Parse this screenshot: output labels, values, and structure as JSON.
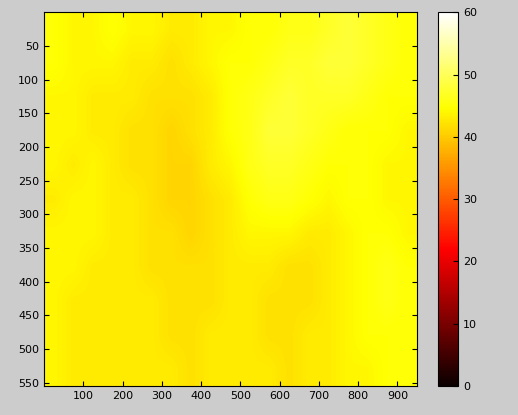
{
  "chart_data": {
    "type": "heatmap",
    "color": "hot",
    "xlim": [
      0,
      950
    ],
    "xticks": [
      100,
      200,
      300,
      400,
      500,
      600,
      700,
      800,
      900
    ],
    "ylim": [
      555,
      0
    ],
    "yticks": [
      50,
      100,
      150,
      200,
      250,
      300,
      350,
      400,
      450,
      500,
      550
    ],
    "cells": [
      [
        45,
        44,
        44,
        45,
        44,
        44,
        43,
        43,
        44,
        44,
        45,
        45,
        46,
        46,
        47,
        48,
        47,
        46,
        45
      ],
      [
        45,
        44,
        44,
        44,
        43,
        43,
        42,
        43,
        44,
        45,
        45,
        46,
        47,
        47,
        48,
        48,
        47,
        46,
        45
      ],
      [
        44,
        44,
        43,
        43,
        43,
        42,
        42,
        42,
        43,
        45,
        46,
        47,
        48,
        47,
        47,
        47,
        46,
        45,
        45
      ],
      [
        44,
        44,
        43,
        43,
        42,
        42,
        41,
        42,
        43,
        45,
        46,
        48,
        48,
        47,
        46,
        45,
        45,
        45,
        44
      ],
      [
        44,
        43,
        44,
        43,
        42,
        42,
        41,
        41,
        43,
        44,
        46,
        47,
        47,
        46,
        45,
        45,
        45,
        44,
        44
      ],
      [
        43,
        44,
        44,
        43,
        43,
        42,
        41,
        41,
        42,
        43,
        45,
        46,
        46,
        45,
        44,
        45,
        45,
        44,
        44
      ],
      [
        44,
        44,
        44,
        43,
        43,
        42,
        42,
        41,
        42,
        43,
        44,
        44,
        44,
        43,
        43,
        44,
        45,
        45,
        44
      ],
      [
        44,
        44,
        43,
        43,
        43,
        42,
        42,
        42,
        42,
        43,
        43,
        43,
        42,
        42,
        43,
        44,
        45,
        46,
        45
      ],
      [
        44,
        43,
        43,
        43,
        43,
        43,
        42,
        42,
        42,
        43,
        43,
        42,
        42,
        42,
        43,
        44,
        45,
        46,
        45
      ],
      [
        44,
        43,
        43,
        43,
        43,
        43,
        42,
        42,
        43,
        43,
        43,
        42,
        42,
        43,
        43,
        44,
        45,
        45,
        45
      ],
      [
        44,
        43,
        43,
        43,
        43,
        43,
        43,
        42,
        43,
        43,
        43,
        43,
        42,
        43,
        43,
        44,
        44,
        45,
        45
      ]
    ],
    "colorbar_range": [
      0,
      60
    ],
    "colorbar_ticks": [
      0,
      10,
      20,
      30,
      40,
      50,
      60
    ]
  }
}
